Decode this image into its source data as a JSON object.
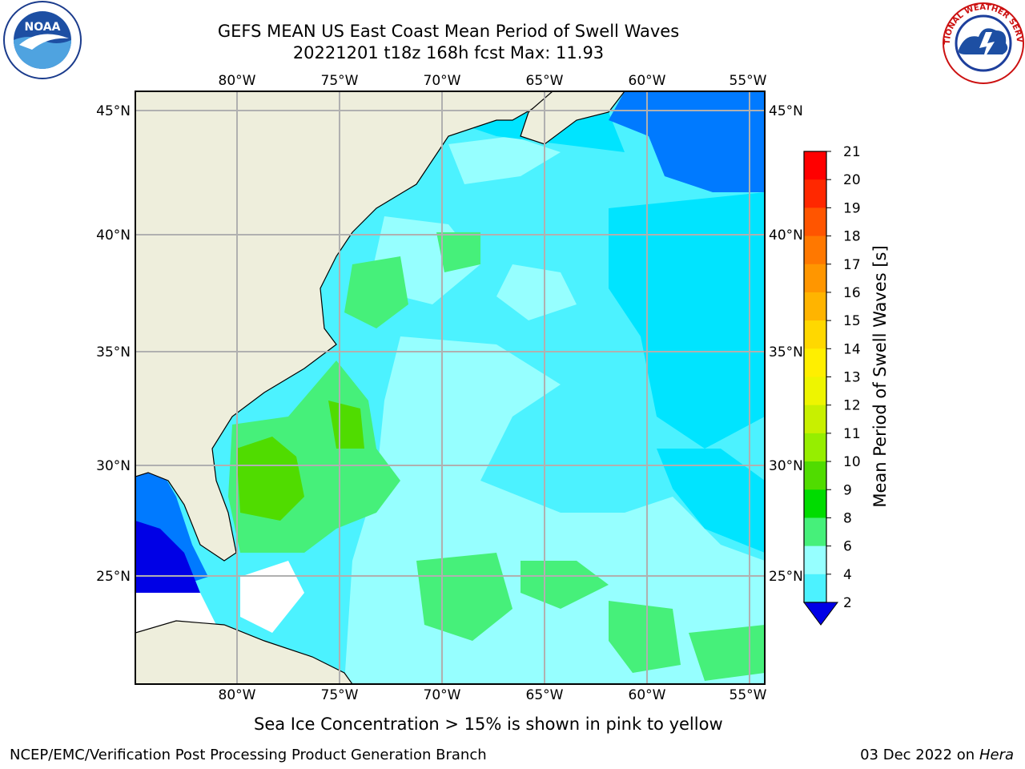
{
  "header": {
    "title_line1": "GEFS MEAN US East Coast Mean Period of Swell Waves",
    "title_line2": "20221201 t18z 168h fcst   Max: 11.93"
  },
  "logos": {
    "left": "noaa-logo",
    "right": "national-weather-service-logo",
    "left_text": "NOAA",
    "right_text": "NATIONAL WEATHER SERVICE"
  },
  "map": {
    "lon_labels": [
      "80°W",
      "75°W",
      "70°W",
      "65°W",
      "60°W",
      "55°W"
    ],
    "lat_labels": [
      "45°N",
      "40°N",
      "35°N",
      "30°N",
      "25°N"
    ]
  },
  "colorbar": {
    "label": "Mean Period of Swell Waves [s]",
    "levels": [
      21,
      20,
      19,
      18,
      17,
      16,
      15,
      14,
      13,
      12,
      11,
      10,
      9,
      8,
      6,
      4,
      2
    ],
    "colors": [
      "#ff0000",
      "#ff2000",
      "#ff4500",
      "#ff6a00",
      "#ff8c00",
      "#ffb000",
      "#ffd400",
      "#fff000",
      "#e6f000",
      "#c6f000",
      "#8cf000",
      "#3cd800",
      "#00e000",
      "#46f078",
      "#96ffff",
      "#48ffff",
      "#00e8ff",
      "#0090ff",
      "#0000ee"
    ],
    "colors_top_to_bottom": [
      "#ff0000",
      "#ff2800",
      "#ff5500",
      "#ff7800",
      "#ff9600",
      "#ffb400",
      "#ffd800",
      "#ffef00",
      "#eef500",
      "#c8f000",
      "#96ee00",
      "#50dc00",
      "#00dc00",
      "#46f07a",
      "#96ffff",
      "#4cf2ff",
      "#00e4ff",
      "#007aff"
    ],
    "under_color": "#0000e6"
  },
  "footer": {
    "ice_note": "Sea Ice Concentration > 15% is shown in pink to yellow",
    "credit": "NCEP/EMC/Verification Post Processing Product Generation Branch",
    "date_prefix": "03 Dec 2022 on",
    "date_host": "Hera"
  }
}
